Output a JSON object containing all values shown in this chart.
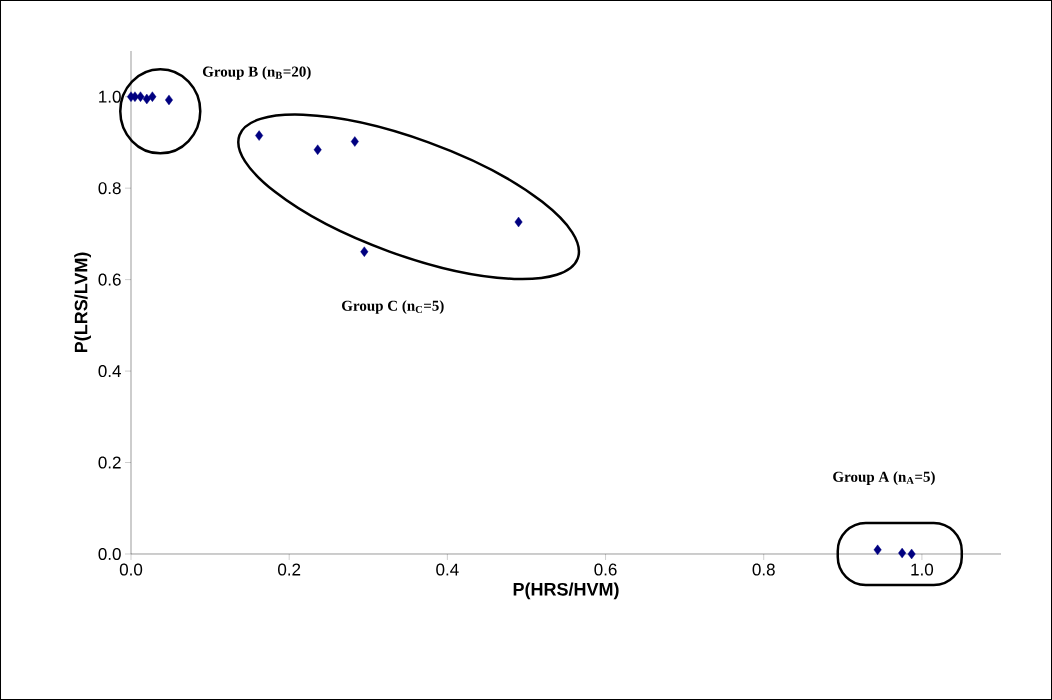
{
  "chart_data": {
    "type": "scatter",
    "xlabel": "P(HRS/HVM)",
    "ylabel": "P(LRS/LVM)",
    "x": [
      0.0,
      0.005,
      0.012,
      0.02,
      0.027,
      0.048,
      0.162,
      0.236,
      0.283,
      0.295,
      0.49,
      0.944,
      0.975,
      0.987
    ],
    "values": [
      1.0,
      1.0,
      1.0,
      0.995,
      1.0,
      0.993,
      0.915,
      0.884,
      0.902,
      0.661,
      0.726,
      0.009,
      0.002,
      0.0
    ],
    "color": "#000080",
    "marker": "diamond",
    "grid": false,
    "xlim": [
      0,
      1.1
    ],
    "ylim": [
      0,
      1.1
    ],
    "xticks": [
      {
        "value": 0,
        "label": "0.0"
      },
      {
        "value": 0.2,
        "label": "0.2"
      },
      {
        "value": 0.4,
        "label": "0.4"
      },
      {
        "value": 0.6,
        "label": "0.6"
      },
      {
        "value": 0.8,
        "label": "0.8"
      },
      {
        "value": 1.0,
        "label": "1.0"
      }
    ],
    "yticks": [
      {
        "value": 0,
        "label": "0.0"
      },
      {
        "value": 0.2,
        "label": "0.2"
      },
      {
        "value": 0.4,
        "label": "0.4"
      },
      {
        "value": 0.6,
        "label": "0.6"
      },
      {
        "value": 0.8,
        "label": "0.8"
      },
      {
        "value": 1.0,
        "label": "1.0"
      }
    ],
    "annotations": [
      "Group B (n$_{B}$=20)",
      "Group C (n$_{C}$=5)",
      "Group A (n$_{A}$=5)"
    ]
  }
}
